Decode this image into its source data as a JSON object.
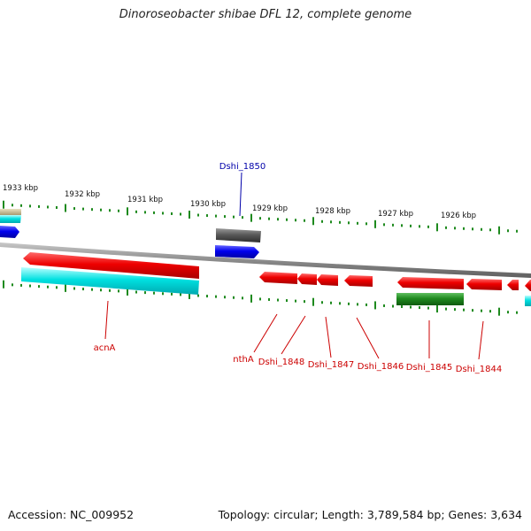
{
  "title": "Dinoroseobacter shibae DFL 12, complete genome",
  "footer": {
    "accession": "Accession: NC_009952",
    "summary": "Topology: circular; Length: 3,789,584 bp; Genes: 3,634"
  },
  "ruler": {
    "labels": [
      "1933 kbp",
      "1932 kbp",
      "1931 kbp",
      "1930 kbp",
      "1929 kbp",
      "1928 kbp",
      "1927 kbp",
      "1926 kbp"
    ]
  },
  "genes": {
    "upper_label": "Dshi_1850",
    "lower_labels": [
      "acnA",
      "nthA",
      "Dshi_1848",
      "Dshi_1847",
      "Dshi_1846",
      "Dshi_1845",
      "Dshi_1844"
    ]
  },
  "colors": {
    "tick_green": "#1e8a1e",
    "backbone_gray": "#8c8c8c",
    "gene_red": "#ee0000",
    "gene_blue": "#0000ee",
    "gene_cyan": "#00e0e0",
    "gene_green": "#1e8a1e",
    "gene_gray": "#5a5a5a",
    "label_red": "#cc0000",
    "label_blue": "#0000aa"
  }
}
